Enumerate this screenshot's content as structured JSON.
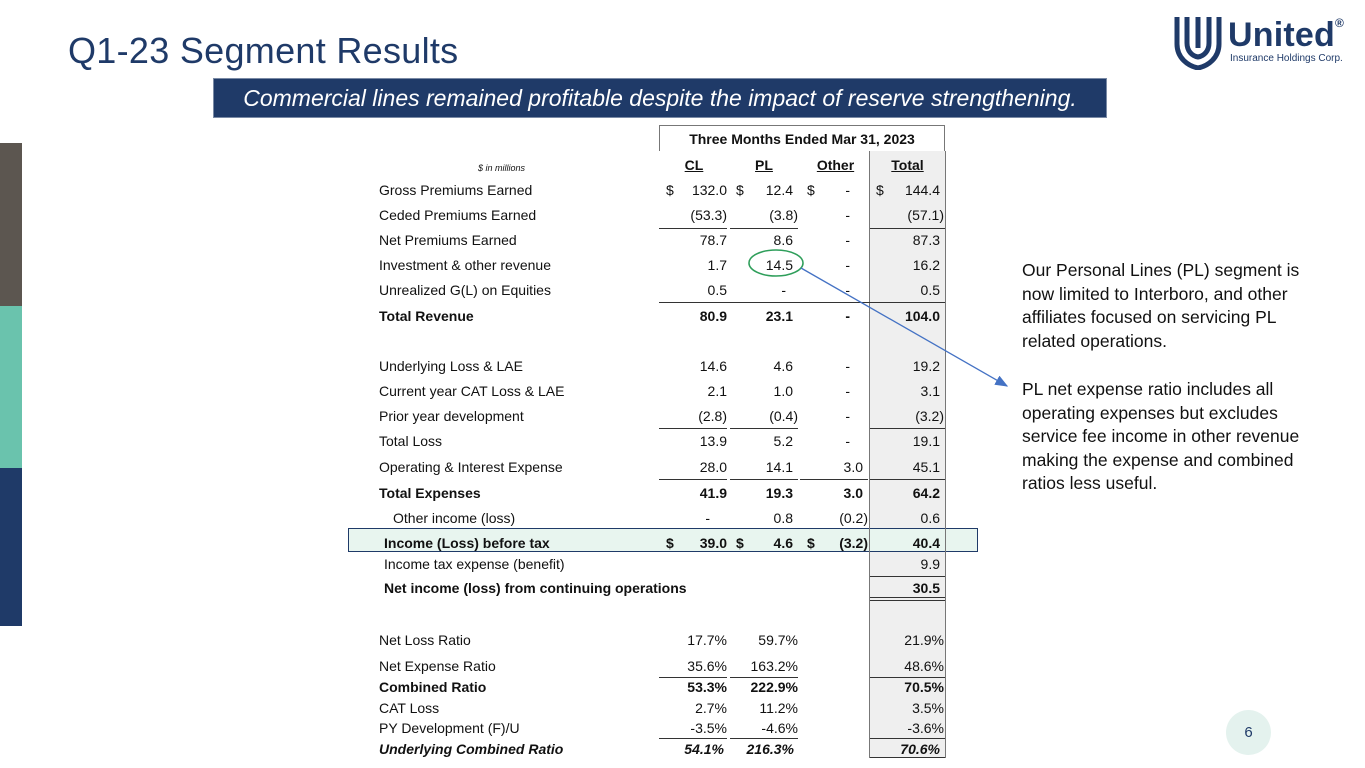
{
  "title": "Q1-23 Segment Results",
  "logo": {
    "brand": "United",
    "reg": "®",
    "sub": "Insurance Holdings Corp."
  },
  "banner": "Commercial lines remained profitable despite the impact of reserve strengthening.",
  "table": {
    "period_header": "Three Months Ended Mar 31, 2023",
    "units_note": "$ in millions",
    "columns": [
      "CL",
      "PL",
      "Other",
      "Total"
    ],
    "currency_symbol": "$",
    "rows": {
      "gpe": {
        "label": "Gross Premiums Earned",
        "cl": "132.0",
        "pl": "12.4",
        "other": "-",
        "total": "144.4"
      },
      "cpe": {
        "label": "Ceded Premiums Earned",
        "cl": "(53.3)",
        "pl": "(3.8)",
        "other": "-",
        "total": "(57.1)"
      },
      "npe": {
        "label": "Net Premiums Earned",
        "cl": "78.7",
        "pl": "8.6",
        "other": "-",
        "total": "87.3"
      },
      "inv": {
        "label": "Investment & other revenue",
        "cl": "1.7",
        "pl": "14.5",
        "other": "-",
        "total": "16.2"
      },
      "ugl": {
        "label": "Unrealized G(L) on Equities",
        "cl": "0.5",
        "pl": "-",
        "other": "-",
        "total": "0.5"
      },
      "trev": {
        "label": "Total Revenue",
        "cl": "80.9",
        "pl": "23.1",
        "other": "-",
        "total": "104.0"
      },
      "ull": {
        "label": "Underlying Loss & LAE",
        "cl": "14.6",
        "pl": "4.6",
        "other": "-",
        "total": "19.2"
      },
      "cat": {
        "label": "Current year CAT Loss & LAE",
        "cl": "2.1",
        "pl": "1.0",
        "other": "-",
        "total": "3.1"
      },
      "pyd": {
        "label": "Prior year development",
        "cl": "(2.8)",
        "pl": "(0.4)",
        "other": "-",
        "total": "(3.2)"
      },
      "tloss": {
        "label": "Total Loss",
        "cl": "13.9",
        "pl": "5.2",
        "other": "-",
        "total": "19.1"
      },
      "opex": {
        "label": "Operating & Interest Expense",
        "cl": "28.0",
        "pl": "14.1",
        "other": "3.0",
        "total": "45.1"
      },
      "texp": {
        "label": "Total Expenses",
        "cl": "41.9",
        "pl": "19.3",
        "other": "3.0",
        "total": "64.2"
      },
      "oinc": {
        "label": "Other income (loss)",
        "cl": "-",
        "pl": "0.8",
        "other": "(0.2)",
        "total": "0.6"
      },
      "ibt": {
        "label": "Income (Loss) before tax",
        "cl": "39.0",
        "pl": "4.6",
        "other": "(3.2)",
        "total": "40.4"
      },
      "tax": {
        "label": "Income tax expense (benefit)",
        "total": "9.9"
      },
      "ni": {
        "label": "Net income (loss) from continuing operations",
        "total": "30.5"
      }
    },
    "ratios": {
      "nlr": {
        "label": "Net Loss Ratio",
        "cl": "17.7%",
        "pl": "59.7%",
        "total": "21.9%"
      },
      "ner": {
        "label": "Net Expense Ratio",
        "cl": "35.6%",
        "pl": "163.2%",
        "total": "48.6%"
      },
      "cr": {
        "label": "Combined Ratio",
        "cl": "53.3%",
        "pl": "222.9%",
        "total": "70.5%"
      },
      "catl": {
        "label": "CAT Loss",
        "cl": "2.7%",
        "pl": "11.2%",
        "total": "3.5%"
      },
      "pydr": {
        "label": "PY Development (F)/U",
        "cl": "-3.5%",
        "pl": "-4.6%",
        "total": "-3.6%"
      },
      "ucr": {
        "label": "Underlying Combined Ratio",
        "cl": "54.1%",
        "pl": "216.3%",
        "total": "70.6%"
      }
    }
  },
  "callout": {
    "p1": "Our Personal Lines (PL) segment is now limited to Interboro, and other affiliates focused on servicing PL related operations.",
    "p2": "PL net expense ratio includes all operating expenses but excludes service fee income in other revenue making the expense and combined ratios less useful."
  },
  "page_number": "6",
  "colors": {
    "navy": "#1f3a68",
    "teal": "#6ac3ad",
    "taupe": "#5c5650",
    "circle": "#2e9e5a",
    "arrow": "#4472c4"
  }
}
